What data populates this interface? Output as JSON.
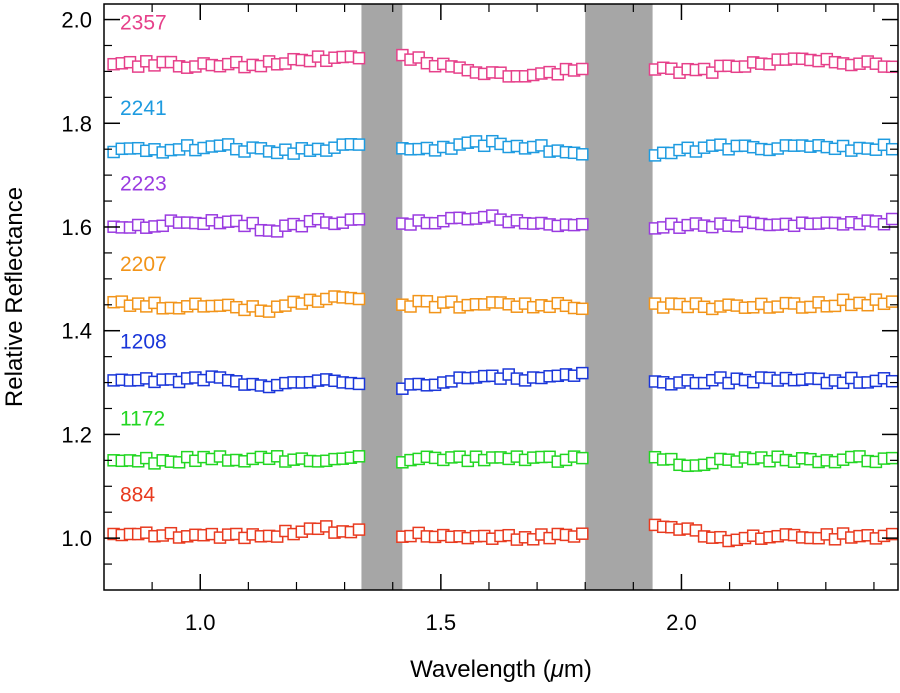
{
  "chart_data": {
    "type": "scatter",
    "xlabel": "Wavelength (",
    "xlabel_mu": "μ",
    "xlabel_unit": "m)",
    "ylabel": "Relative Reflectance",
    "xlim": [
      0.8,
      2.45
    ],
    "ylim": [
      0.9,
      2.03
    ],
    "x_ticks": [
      {
        "value": 1.0,
        "label": "1.0"
      },
      {
        "value": 1.5,
        "label": "1.5"
      },
      {
        "value": 2.0,
        "label": "2.0"
      }
    ],
    "x_minor_ticks": [
      0.9,
      1.1,
      1.2,
      1.3,
      1.4,
      1.6,
      1.7,
      1.8,
      1.9,
      2.1,
      2.2,
      2.3,
      2.4
    ],
    "y_ticks": [
      {
        "value": 1.0,
        "label": "1.0"
      },
      {
        "value": 1.2,
        "label": "1.2"
      },
      {
        "value": 1.4,
        "label": "1.4"
      },
      {
        "value": 1.6,
        "label": "1.6"
      },
      {
        "value": 1.8,
        "label": "1.8"
      },
      {
        "value": 2.0,
        "label": "2.0"
      }
    ],
    "y_minor_ticks": [
      0.95,
      1.05,
      1.1,
      1.15,
      1.25,
      1.3,
      1.35,
      1.45,
      1.5,
      1.55,
      1.65,
      1.7,
      1.75,
      1.85,
      1.9,
      1.95
    ],
    "grid": false,
    "marker": "open-square",
    "shaded_bands": [
      {
        "x0": 1.335,
        "x1": 1.42,
        "color": "#a6a6a6"
      },
      {
        "x0": 1.8,
        "x1": 1.94,
        "color": "#a6a6a6"
      }
    ],
    "x_segments": [
      {
        "start": 0.82,
        "end": 1.33,
        "step": 0.017
      },
      {
        "start": 1.42,
        "end": 1.8,
        "step": 0.017
      },
      {
        "start": 1.945,
        "end": 2.445,
        "step": 0.017
      }
    ],
    "series": [
      {
        "name": "2357",
        "color": "#e6408a",
        "base": 1.915,
        "anchors": [
          [
            0.82,
            1.915
          ],
          [
            1.0,
            1.912
          ],
          [
            1.15,
            1.914
          ],
          [
            1.31,
            1.93
          ],
          [
            1.43,
            1.93
          ],
          [
            1.55,
            1.9
          ],
          [
            1.7,
            1.892
          ],
          [
            1.79,
            1.905
          ],
          [
            1.95,
            1.905
          ],
          [
            2.05,
            1.9
          ],
          [
            2.15,
            1.918
          ],
          [
            2.3,
            1.92
          ],
          [
            2.44,
            1.912
          ]
        ]
      },
      {
        "name": "2241",
        "color": "#1e9be0",
        "base": 1.75,
        "anchors": [
          [
            0.82,
            1.745
          ],
          [
            0.95,
            1.75
          ],
          [
            1.05,
            1.758
          ],
          [
            1.15,
            1.742
          ],
          [
            1.31,
            1.755
          ],
          [
            1.43,
            1.745
          ],
          [
            1.6,
            1.762
          ],
          [
            1.79,
            1.745
          ],
          [
            1.95,
            1.742
          ],
          [
            2.1,
            1.755
          ],
          [
            2.3,
            1.752
          ],
          [
            2.44,
            1.755
          ]
        ]
      },
      {
        "name": "2223",
        "color": "#9a3be0",
        "base": 1.605,
        "anchors": [
          [
            0.82,
            1.6
          ],
          [
            1.0,
            1.61
          ],
          [
            1.1,
            1.605
          ],
          [
            1.15,
            1.595
          ],
          [
            1.25,
            1.612
          ],
          [
            1.31,
            1.61
          ],
          [
            1.43,
            1.605
          ],
          [
            1.58,
            1.618
          ],
          [
            1.79,
            1.605
          ],
          [
            1.95,
            1.603
          ],
          [
            2.1,
            1.605
          ],
          [
            2.44,
            1.61
          ]
        ]
      },
      {
        "name": "2207",
        "color": "#f29419",
        "base": 1.45,
        "anchors": [
          [
            0.82,
            1.455
          ],
          [
            0.95,
            1.445
          ],
          [
            1.05,
            1.448
          ],
          [
            1.13,
            1.44
          ],
          [
            1.2,
            1.455
          ],
          [
            1.27,
            1.462
          ],
          [
            1.31,
            1.458
          ],
          [
            1.43,
            1.452
          ],
          [
            1.6,
            1.45
          ],
          [
            1.79,
            1.448
          ],
          [
            1.95,
            1.448
          ],
          [
            2.15,
            1.445
          ],
          [
            2.35,
            1.455
          ],
          [
            2.44,
            1.455
          ]
        ]
      },
      {
        "name": "1208",
        "color": "#1a36d9",
        "base": 1.3,
        "anchors": [
          [
            0.82,
            1.3
          ],
          [
            0.95,
            1.305
          ],
          [
            1.05,
            1.308
          ],
          [
            1.12,
            1.295
          ],
          [
            1.14,
            1.29
          ],
          [
            1.2,
            1.302
          ],
          [
            1.27,
            1.308
          ],
          [
            1.31,
            1.3
          ],
          [
            1.43,
            1.29
          ],
          [
            1.55,
            1.31
          ],
          [
            1.7,
            1.31
          ],
          [
            1.79,
            1.313
          ],
          [
            1.95,
            1.298
          ],
          [
            2.1,
            1.305
          ],
          [
            2.3,
            1.305
          ],
          [
            2.44,
            1.305
          ]
        ]
      },
      {
        "name": "1172",
        "color": "#22d622",
        "base": 1.152,
        "anchors": [
          [
            0.82,
            1.148
          ],
          [
            1.0,
            1.152
          ],
          [
            1.31,
            1.152
          ],
          [
            1.43,
            1.152
          ],
          [
            1.79,
            1.152
          ],
          [
            1.95,
            1.158
          ],
          [
            2.0,
            1.142
          ],
          [
            2.1,
            1.152
          ],
          [
            2.25,
            1.152
          ],
          [
            2.44,
            1.152
          ]
        ]
      },
      {
        "name": "884",
        "color": "#e83a1f",
        "base": 1.005,
        "anchors": [
          [
            0.82,
            1.008
          ],
          [
            1.0,
            1.002
          ],
          [
            1.1,
            1.002
          ],
          [
            1.25,
            1.018
          ],
          [
            1.31,
            1.012
          ],
          [
            1.43,
            1.005
          ],
          [
            1.6,
            1.0
          ],
          [
            1.79,
            1.005
          ],
          [
            1.95,
            1.022
          ],
          [
            2.1,
            1.0
          ],
          [
            2.3,
            1.003
          ],
          [
            2.44,
            1.005
          ]
        ]
      }
    ]
  }
}
